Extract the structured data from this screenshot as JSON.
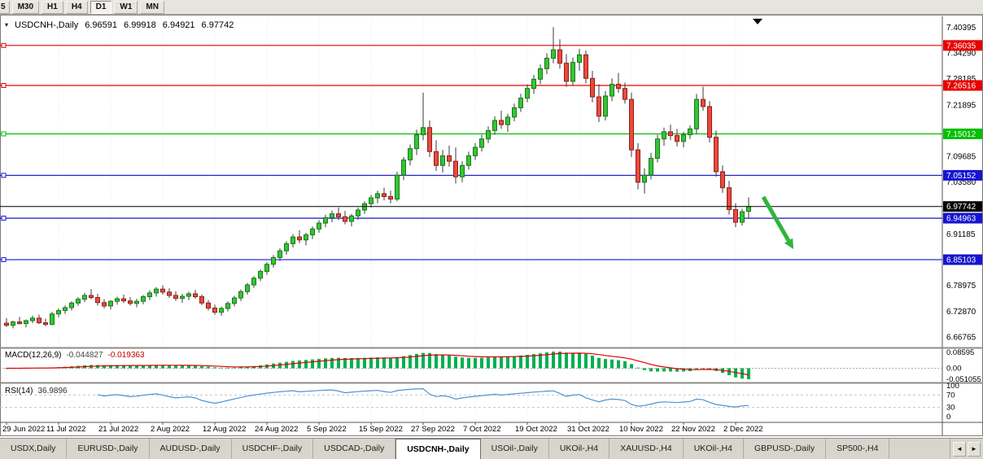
{
  "icons": {
    "chart_menu": "▾",
    "chart_shift": "▼",
    "scroll_left": "◄",
    "scroll_right": "►"
  },
  "toolbar": {
    "partial_timeframe": "5",
    "timeframes": [
      "M30",
      "H1",
      "H4",
      "D1",
      "W1",
      "MN"
    ],
    "active_timeframe": "D1"
  },
  "chart_header": {
    "symbol_period": "USDCNH-,Daily",
    "open": "6.96591",
    "high": "6.99918",
    "low": "6.94921",
    "close": "6.97742"
  },
  "chart_data": [
    {
      "type": "candlestick",
      "symbol": "USDCNH-",
      "period": "Daily",
      "title": "USDCNH-,Daily",
      "ylim": [
        6.648,
        7.418
      ],
      "y_ticks": [
        7.40395,
        7.3429,
        7.28185,
        7.21895,
        7.09685,
        7.0358,
        6.91185,
        6.78975,
        6.7287,
        6.66765
      ],
      "hlines": [
        {
          "value": 7.36035,
          "color": "#e80000"
        },
        {
          "value": 7.26516,
          "color": "#e80000"
        },
        {
          "value": 7.15012,
          "color": "#00c000"
        },
        {
          "value": 7.05152,
          "color": "#1515d0"
        },
        {
          "value": 6.94963,
          "color": "#1515d0"
        },
        {
          "value": 6.85103,
          "color": "#1515d0"
        }
      ],
      "price_line": {
        "value": 6.97742,
        "color": "#000000"
      },
      "arrow": {
        "color": "#2eb53c",
        "direction": "down-right"
      },
      "up_color": "#35c435",
      "down_color": "#e84b3c",
      "x_labels": [
        "29 Jun 2022",
        "11 Jul 2022",
        "21 Jul 2022",
        "2 Aug 2022",
        "12 Aug 2022",
        "24 Aug 2022",
        "5 Sep 2022",
        "15 Sep 2022",
        "27 Sep 2022",
        "7 Oct 2022",
        "19 Oct 2022",
        "31 Oct 2022",
        "10 Nov 2022",
        "22 Nov 2022",
        "2 Dec 2022"
      ],
      "x_label_indices": [
        0,
        8,
        16,
        24,
        32,
        40,
        48,
        56,
        64,
        72,
        80,
        88,
        96,
        104,
        112
      ],
      "ohlc": [
        [
          6.7,
          6.712,
          6.691,
          6.695
        ],
        [
          6.695,
          6.706,
          6.688,
          6.703
        ],
        [
          6.703,
          6.715,
          6.697,
          6.699
        ],
        [
          6.699,
          6.709,
          6.69,
          6.706
        ],
        [
          6.706,
          6.718,
          6.7,
          6.712
        ],
        [
          6.712,
          6.72,
          6.698,
          6.701
        ],
        [
          6.701,
          6.711,
          6.693,
          6.697
        ],
        [
          6.697,
          6.727,
          6.695,
          6.722
        ],
        [
          6.722,
          6.735,
          6.714,
          6.73
        ],
        [
          6.73,
          6.742,
          6.722,
          6.737
        ],
        [
          6.737,
          6.752,
          6.73,
          6.748
        ],
        [
          6.748,
          6.762,
          6.741,
          6.757
        ],
        [
          6.757,
          6.772,
          6.75,
          6.766
        ],
        [
          6.766,
          6.781,
          6.757,
          6.761
        ],
        [
          6.761,
          6.77,
          6.742,
          6.749
        ],
        [
          6.749,
          6.757,
          6.735,
          6.741
        ],
        [
          6.741,
          6.755,
          6.733,
          6.752
        ],
        [
          6.752,
          6.763,
          6.744,
          6.758
        ],
        [
          6.758,
          6.768,
          6.748,
          6.753
        ],
        [
          6.753,
          6.762,
          6.742,
          6.747
        ],
        [
          6.747,
          6.758,
          6.738,
          6.752
        ],
        [
          6.752,
          6.767,
          6.745,
          6.763
        ],
        [
          6.763,
          6.778,
          6.755,
          6.772
        ],
        [
          6.772,
          6.786,
          6.763,
          6.781
        ],
        [
          6.781,
          6.79,
          6.768,
          6.774
        ],
        [
          6.774,
          6.783,
          6.76,
          6.766
        ],
        [
          6.766,
          6.776,
          6.753,
          6.759
        ],
        [
          6.759,
          6.77,
          6.748,
          6.764
        ],
        [
          6.764,
          6.775,
          6.755,
          6.77
        ],
        [
          6.77,
          6.779,
          6.758,
          6.763
        ],
        [
          6.763,
          6.768,
          6.743,
          6.748
        ],
        [
          6.748,
          6.755,
          6.73,
          6.736
        ],
        [
          6.736,
          6.744,
          6.72,
          6.726
        ],
        [
          6.726,
          6.74,
          6.718,
          6.735
        ],
        [
          6.735,
          6.752,
          6.728,
          6.747
        ],
        [
          6.747,
          6.765,
          6.74,
          6.76
        ],
        [
          6.76,
          6.78,
          6.753,
          6.775
        ],
        [
          6.775,
          6.796,
          6.768,
          6.791
        ],
        [
          6.791,
          6.812,
          6.784,
          6.807
        ],
        [
          6.807,
          6.828,
          6.8,
          6.823
        ],
        [
          6.823,
          6.845,
          6.815,
          6.84
        ],
        [
          6.84,
          6.862,
          6.832,
          6.856
        ],
        [
          6.856,
          6.878,
          6.848,
          6.872
        ],
        [
          6.872,
          6.895,
          6.863,
          6.889
        ],
        [
          6.889,
          6.912,
          6.88,
          6.905
        ],
        [
          6.905,
          6.921,
          6.89,
          6.898
        ],
        [
          6.898,
          6.915,
          6.885,
          6.91
        ],
        [
          6.91,
          6.93,
          6.9,
          6.924
        ],
        [
          6.924,
          6.945,
          6.915,
          6.938
        ],
        [
          6.938,
          6.958,
          6.928,
          6.951
        ],
        [
          6.951,
          6.968,
          6.94,
          6.96
        ],
        [
          6.96,
          6.975,
          6.945,
          6.953
        ],
        [
          6.953,
          6.967,
          6.935,
          6.942
        ],
        [
          6.942,
          6.96,
          6.93,
          6.955
        ],
        [
          6.955,
          6.975,
          6.946,
          6.969
        ],
        [
          6.969,
          6.99,
          6.96,
          6.984
        ],
        [
          6.984,
          7.005,
          6.975,
          6.998
        ],
        [
          6.998,
          7.015,
          6.985,
          7.008
        ],
        [
          7.008,
          7.022,
          6.992,
          7.001
        ],
        [
          7.001,
          7.015,
          6.985,
          6.995
        ],
        [
          6.995,
          7.06,
          6.99,
          7.052
        ],
        [
          7.052,
          7.095,
          7.04,
          7.088
        ],
        [
          7.088,
          7.125,
          7.075,
          7.115
        ],
        [
          7.115,
          7.16,
          7.1,
          7.148
        ],
        [
          7.148,
          7.248,
          7.135,
          7.165
        ],
        [
          7.165,
          7.182,
          7.095,
          7.108
        ],
        [
          7.108,
          7.135,
          7.062,
          7.075
        ],
        [
          7.075,
          7.112,
          7.058,
          7.098
        ],
        [
          7.098,
          7.122,
          7.072,
          7.085
        ],
        [
          7.085,
          7.118,
          7.032,
          7.048
        ],
        [
          7.048,
          7.085,
          7.035,
          7.075
        ],
        [
          7.075,
          7.108,
          7.065,
          7.098
        ],
        [
          7.098,
          7.128,
          7.088,
          7.118
        ],
        [
          7.118,
          7.148,
          7.108,
          7.138
        ],
        [
          7.138,
          7.168,
          7.128,
          7.158
        ],
        [
          7.158,
          7.192,
          7.148,
          7.182
        ],
        [
          7.182,
          7.205,
          7.162,
          7.172
        ],
        [
          7.172,
          7.198,
          7.155,
          7.19
        ],
        [
          7.19,
          7.222,
          7.18,
          7.212
        ],
        [
          7.212,
          7.245,
          7.202,
          7.235
        ],
        [
          7.235,
          7.268,
          7.225,
          7.258
        ],
        [
          7.258,
          7.29,
          7.245,
          7.28
        ],
        [
          7.28,
          7.315,
          7.268,
          7.305
        ],
        [
          7.305,
          7.342,
          7.292,
          7.33
        ],
        [
          7.33,
          7.404,
          7.318,
          7.35
        ],
        [
          7.35,
          7.375,
          7.305,
          7.318
        ],
        [
          7.318,
          7.34,
          7.262,
          7.275
        ],
        [
          7.275,
          7.332,
          7.265,
          7.32
        ],
        [
          7.32,
          7.352,
          7.3,
          7.338
        ],
        [
          7.338,
          7.348,
          7.27,
          7.282
        ],
        [
          7.282,
          7.3,
          7.225,
          7.238
        ],
        [
          7.238,
          7.268,
          7.178,
          7.192
        ],
        [
          7.192,
          7.252,
          7.182,
          7.24
        ],
        [
          7.24,
          7.282,
          7.228,
          7.268
        ],
        [
          7.268,
          7.295,
          7.248,
          7.258
        ],
        [
          7.258,
          7.272,
          7.222,
          7.232
        ],
        [
          7.232,
          7.248,
          7.095,
          7.112
        ],
        [
          7.112,
          7.128,
          7.018,
          7.035
        ],
        [
          7.035,
          7.068,
          7.008,
          7.052
        ],
        [
          7.052,
          7.105,
          7.042,
          7.092
        ],
        [
          7.092,
          7.148,
          7.082,
          7.138
        ],
        [
          7.138,
          7.165,
          7.122,
          7.155
        ],
        [
          7.155,
          7.172,
          7.135,
          7.146
        ],
        [
          7.146,
          7.162,
          7.12,
          7.132
        ],
        [
          7.132,
          7.155,
          7.118,
          7.148
        ],
        [
          7.148,
          7.17,
          7.138,
          7.162
        ],
        [
          7.162,
          7.245,
          7.15,
          7.232
        ],
        [
          7.232,
          7.262,
          7.205,
          7.215
        ],
        [
          7.215,
          7.228,
          7.13,
          7.142
        ],
        [
          7.142,
          7.158,
          7.048,
          7.06
        ],
        [
          7.06,
          7.075,
          7.01,
          7.022
        ],
        [
          7.022,
          7.038,
          6.958,
          6.97
        ],
        [
          6.97,
          6.985,
          6.928,
          6.94
        ],
        [
          6.94,
          6.972,
          6.932,
          6.965
        ],
        [
          6.96591,
          6.99918,
          6.94921,
          6.97742
        ]
      ]
    },
    {
      "type": "macd",
      "label": "MACD(12,26,9)",
      "main_value": "-0.044827",
      "signal_value": "-0.019363",
      "params": [
        12,
        26,
        9
      ],
      "y_ticks_text": [
        "0.08595",
        "0.00",
        "-0.051055"
      ],
      "histogram_color": "#00b050",
      "signal_color": "#e00000"
    },
    {
      "type": "rsi",
      "label": "RSI(14)",
      "value": "36.9896",
      "period": 14,
      "levels": [
        70,
        30
      ],
      "y_ticks_text": [
        "100",
        "70",
        "30",
        "0"
      ],
      "line_color": "#4f93d2"
    }
  ],
  "tabs": {
    "items": [
      {
        "label": "USDX,Daily",
        "active": false
      },
      {
        "label": "EURUSD-,Daily",
        "active": false
      },
      {
        "label": "AUDUSD-,Daily",
        "active": false
      },
      {
        "label": "USDCHF-,Daily",
        "active": false
      },
      {
        "label": "USDCAD-,Daily",
        "active": false
      },
      {
        "label": "USDCNH-,Daily",
        "active": true
      },
      {
        "label": "USOil-,Daily",
        "active": false
      },
      {
        "label": "UKOil-,H4",
        "active": false
      },
      {
        "label": "XAUUSD-,H4",
        "active": false
      },
      {
        "label": "UKOil-,H4",
        "active": false
      },
      {
        "label": "GBPUSD-,Daily",
        "active": false
      },
      {
        "label": "SP500-,H4",
        "active": false
      }
    ]
  }
}
